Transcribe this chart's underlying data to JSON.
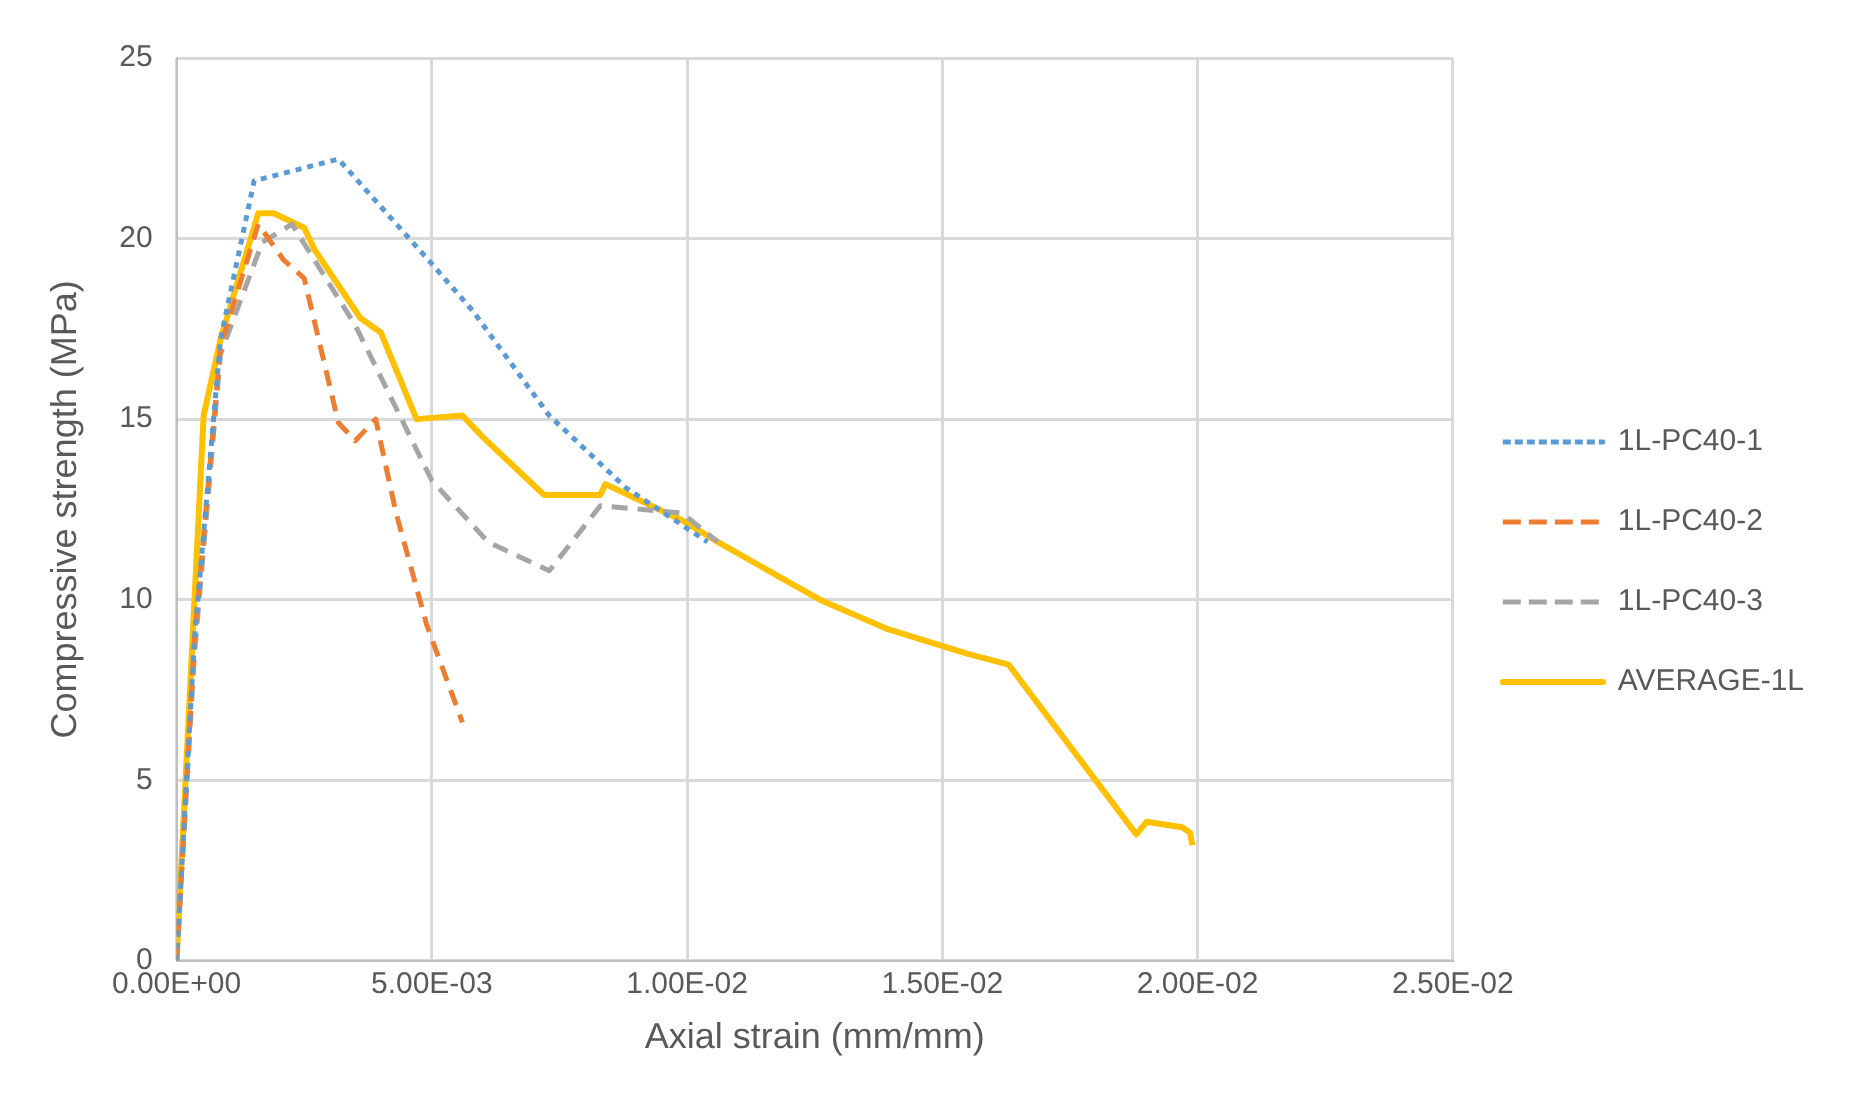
{
  "chart_data": {
    "type": "line",
    "xlabel": "Axial strain (mm/mm)",
    "ylabel": "Compressive strength (MPa)",
    "xlim": [
      0,
      0.025
    ],
    "xticks": [
      {
        "value": 0,
        "label": "0.00E+00"
      },
      {
        "value": 0.005,
        "label": "5.00E-03"
      },
      {
        "value": 0.01,
        "label": "1.00E-02"
      },
      {
        "value": 0.015,
        "label": "1.50E-02"
      },
      {
        "value": 0.02,
        "label": "2.00E-02"
      },
      {
        "value": 0.025,
        "label": "2.50E-02"
      }
    ],
    "ylim": [
      0,
      25
    ],
    "yticks": [
      0,
      5,
      10,
      15,
      20,
      25
    ],
    "grid": true,
    "legend": "right",
    "marker": "none",
    "series": [
      {
        "name": "1L-PC40-1",
        "color": "#5b9bd5",
        "line_style": "dotted",
        "x": [
          0,
          0.00035,
          0.00086,
          0.00152,
          0.00317,
          0.005,
          0.0058,
          0.0073,
          0.0088,
          0.0104
        ],
        "values": [
          0,
          8.9,
          17.2,
          21.6,
          22.2,
          19.3,
          18.0,
          15.1,
          13.1,
          11.6
        ]
      },
      {
        "name": "1L-PC40-2",
        "color": "#ed7d31",
        "line_style": "dashed",
        "x": [
          0,
          0.00035,
          0.00086,
          0.0016,
          0.0021,
          0.0025,
          0.00317,
          0.0035,
          0.0039,
          0.0043,
          0.0049,
          0.0056
        ],
        "values": [
          0,
          8.9,
          17.0,
          20.4,
          19.4,
          18.9,
          14.9,
          14.4,
          15.0,
          12.4,
          9.3,
          6.6
        ]
      },
      {
        "name": "1L-PC40-3",
        "color": "#a5a5a5",
        "line_style": "dashed",
        "x": [
          0,
          0.00035,
          0.00086,
          0.00168,
          0.00226,
          0.0035,
          0.005,
          0.0061,
          0.0073,
          0.0083,
          0.0099,
          0.0106
        ],
        "values": [
          0,
          8.5,
          16.8,
          19.9,
          20.4,
          17.6,
          13.3,
          11.6,
          10.8,
          12.6,
          12.4,
          11.6
        ]
      },
      {
        "name": "AVERAGE-1L",
        "color": "#ffc000",
        "line_style": "solid",
        "x": [
          0,
          0.00053,
          0.00086,
          0.0016,
          0.0019,
          0.0025,
          0.0027,
          0.0036,
          0.004,
          0.0047,
          0.0056,
          0.006,
          0.0072,
          0.0083,
          0.0084,
          0.0099,
          0.0106,
          0.0126,
          0.0139,
          0.0155,
          0.0163,
          0.0188,
          0.019,
          0.0197,
          0.01985,
          0.0199
        ],
        "values": [
          0,
          15.1,
          17.2,
          20.7,
          20.7,
          20.3,
          19.7,
          17.8,
          17.4,
          15.0,
          15.1,
          14.5,
          12.9,
          12.9,
          13.2,
          12.2,
          11.6,
          10.0,
          9.2,
          8.5,
          8.2,
          3.5,
          3.85,
          3.7,
          3.55,
          3.2
        ]
      }
    ]
  }
}
